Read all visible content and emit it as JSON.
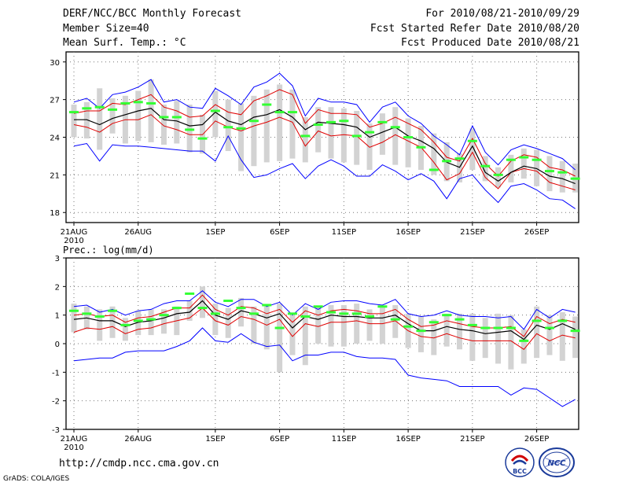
{
  "header": {
    "title": "DERF/NCC/BCC Monthly Forecast",
    "member_size": "Member Size=40",
    "variable": "Mean Surf. Temp.: °C",
    "period": "For 2010/08/21-2010/09/29",
    "started": "Fcst Started Refer Date 2010/08/20",
    "produced": "Fcst Produced Date 2010/08/21"
  },
  "footer": {
    "url": "http://cmdp.ncc.cma.gov.cn",
    "grads": "GrADS: COLA/IGES",
    "logo1_text": "BCC",
    "logo2_text": "NCC"
  },
  "colors": {
    "envelope": "#0000ff",
    "spread": "#e00000",
    "mean": "#000000",
    "box": "#d3d3d3",
    "marker": "#33ff33"
  },
  "chart_data": [
    {
      "type": "line",
      "title": "Mean Surf. Temp.: °C",
      "x_tick_labels": [
        "21AUG",
        "26AUG",
        "1SEP",
        "6SEP",
        "11SEP",
        "16SEP",
        "21SEP",
        "26SEP"
      ],
      "x_tick_positions": [
        1,
        6,
        12,
        17,
        22,
        27,
        32,
        37
      ],
      "year_label": "2010",
      "y_ticks": [
        18,
        21,
        24,
        27,
        30
      ],
      "y_tick_labels": [
        "18",
        "21",
        "24",
        "27",
        "30"
      ],
      "ylim": [
        17.2,
        30.8
      ],
      "x": [
        1,
        2,
        3,
        4,
        5,
        6,
        7,
        8,
        9,
        10,
        11,
        12,
        13,
        14,
        15,
        16,
        17,
        18,
        19,
        20,
        21,
        22,
        23,
        24,
        25,
        26,
        27,
        28,
        29,
        30,
        31,
        32,
        33,
        34,
        35,
        36,
        37,
        38,
        39,
        40
      ],
      "series": [
        {
          "name": "max",
          "values": [
            26.8,
            27.1,
            26.3,
            27.4,
            27.6,
            28.0,
            28.6,
            26.8,
            27.0,
            26.4,
            26.3,
            27.9,
            27.3,
            26.6,
            28.0,
            28.4,
            29.1,
            28.1,
            25.7,
            27.1,
            26.8,
            26.8,
            26.6,
            25.2,
            26.4,
            26.8,
            25.7,
            25.1,
            24.1,
            23.4,
            22.6,
            24.9,
            22.8,
            21.8,
            23.0,
            23.4,
            23.1,
            22.7,
            22.3,
            21.4
          ]
        },
        {
          "name": "upper",
          "values": [
            25.9,
            26.1,
            26.1,
            26.7,
            26.6,
            27.0,
            27.4,
            26.4,
            26.1,
            25.6,
            25.7,
            26.6,
            26.0,
            25.8,
            26.9,
            27.3,
            27.8,
            27.4,
            25.1,
            26.2,
            25.9,
            25.9,
            25.8,
            24.8,
            25.1,
            25.6,
            25.1,
            24.6,
            23.6,
            22.4,
            22.1,
            23.9,
            21.9,
            20.9,
            22.1,
            22.6,
            22.4,
            21.6,
            21.4,
            20.9
          ]
        },
        {
          "name": "mean",
          "values": [
            25.4,
            25.4,
            25.0,
            25.5,
            25.8,
            26.1,
            26.3,
            25.4,
            25.3,
            24.9,
            25.0,
            26.0,
            25.3,
            25.0,
            25.6,
            25.8,
            26.2,
            25.6,
            24.6,
            25.2,
            25.1,
            25.0,
            24.8,
            24.0,
            24.4,
            24.8,
            24.1,
            23.7,
            23.1,
            22.0,
            21.6,
            23.3,
            21.2,
            20.5,
            21.2,
            21.7,
            21.5,
            20.9,
            20.7,
            20.3
          ]
        },
        {
          "name": "lower",
          "values": [
            25.0,
            24.8,
            24.4,
            25.1,
            25.4,
            25.4,
            25.8,
            24.9,
            24.6,
            24.2,
            24.2,
            25.3,
            24.8,
            24.5,
            24.9,
            25.2,
            25.6,
            25.2,
            23.3,
            24.5,
            24.1,
            24.2,
            24.1,
            23.2,
            23.6,
            24.2,
            23.7,
            23.2,
            22.0,
            20.6,
            21.1,
            22.8,
            20.8,
            19.9,
            21.2,
            21.5,
            21.3,
            20.4,
            20.1,
            19.8
          ]
        },
        {
          "name": "min",
          "values": [
            23.3,
            23.5,
            22.1,
            23.4,
            23.3,
            23.3,
            23.2,
            23.1,
            23.0,
            22.9,
            22.9,
            22.1,
            24.1,
            22.2,
            20.8,
            21.0,
            21.5,
            21.9,
            20.7,
            21.7,
            22.2,
            21.7,
            20.9,
            20.9,
            21.8,
            21.3,
            20.6,
            21.1,
            20.5,
            19.1,
            20.7,
            21.0,
            19.8,
            18.8,
            20.1,
            20.3,
            19.8,
            19.1,
            19.0,
            18.3
          ]
        },
        {
          "name": "box_top",
          "values": [
            26.6,
            26.8,
            27.9,
            27.1,
            27.3,
            27.7,
            28.6,
            26.6,
            26.9,
            26.6,
            25.8,
            27.7,
            27.0,
            26.7,
            27.3,
            27.8,
            28.2,
            27.8,
            25.6,
            26.4,
            26.4,
            26.3,
            26.1,
            25.1,
            25.9,
            26.4,
            25.5,
            24.9,
            24.3,
            23.6,
            22.7,
            24.7,
            22.5,
            21.6,
            22.6,
            23.1,
            23.0,
            22.5,
            22.1,
            21.9
          ]
        },
        {
          "name": "box_bottom",
          "values": [
            24.0,
            23.9,
            23.0,
            24.3,
            23.5,
            23.7,
            23.6,
            23.4,
            23.5,
            22.8,
            22.7,
            24.0,
            22.9,
            21.3,
            21.7,
            22.0,
            22.1,
            22.3,
            22.0,
            22.8,
            22.3,
            22.0,
            21.8,
            21.4,
            22.6,
            21.8,
            21.6,
            21.4,
            21.0,
            20.5,
            20.4,
            21.4,
            20.5,
            20.0,
            20.4,
            20.7,
            20.1,
            19.7,
            19.6,
            19.6
          ]
        },
        {
          "name": "green",
          "values": [
            26.0,
            26.3,
            26.4,
            26.2,
            26.7,
            26.8,
            26.7,
            25.6,
            25.6,
            24.6,
            23.9,
            26.1,
            24.8,
            24.7,
            25.3,
            26.6,
            26.0,
            26.0,
            24.1,
            25.0,
            25.2,
            25.3,
            24.1,
            24.4,
            25.2,
            24.8,
            24.0,
            23.2,
            21.4,
            22.1,
            22.3,
            23.7,
            21.7,
            21.0,
            22.2,
            22.4,
            22.2,
            21.3,
            21.2,
            20.7
          ]
        }
      ]
    },
    {
      "type": "line",
      "title": "Prec.: log(mm/d)",
      "x_tick_labels": [
        "21AUG",
        "26AUG",
        "1SEP",
        "6SEP",
        "11SEP",
        "16SEP",
        "21SEP",
        "26SEP"
      ],
      "x_tick_positions": [
        1,
        6,
        12,
        17,
        22,
        27,
        32,
        37
      ],
      "year_label": "2010",
      "y_ticks": [
        -3,
        -2,
        -1,
        0,
        1,
        2,
        3
      ],
      "y_tick_labels": [
        "-3",
        "-2",
        "-1",
        "0",
        "1",
        "2",
        "3"
      ],
      "ylim": [
        -3,
        3
      ],
      "x": [
        1,
        2,
        3,
        4,
        5,
        6,
        7,
        8,
        9,
        10,
        11,
        12,
        13,
        14,
        15,
        16,
        17,
        18,
        19,
        20,
        21,
        22,
        23,
        24,
        25,
        26,
        27,
        28,
        29,
        30,
        31,
        32,
        33,
        34,
        35,
        36,
        37,
        38,
        39,
        40
      ],
      "series": [
        {
          "name": "max",
          "values": [
            1.3,
            1.35,
            1.1,
            1.2,
            1.0,
            1.15,
            1.2,
            1.4,
            1.5,
            1.5,
            1.85,
            1.45,
            1.3,
            1.55,
            1.55,
            1.3,
            1.45,
            1.0,
            1.4,
            1.2,
            1.45,
            1.5,
            1.5,
            1.4,
            1.35,
            1.55,
            1.05,
            0.95,
            1.0,
            1.15,
            1.0,
            0.95,
            0.95,
            0.9,
            0.95,
            0.5,
            1.2,
            0.9,
            1.2,
            1.1
          ]
        },
        {
          "name": "upper",
          "values": [
            1.0,
            1.05,
            0.95,
            1.0,
            0.75,
            0.9,
            0.95,
            1.1,
            1.25,
            1.25,
            1.7,
            1.2,
            1.0,
            1.3,
            1.25,
            1.05,
            1.2,
            0.75,
            1.15,
            1.0,
            1.15,
            1.2,
            1.15,
            1.05,
            1.05,
            1.2,
            0.85,
            0.6,
            0.65,
            0.8,
            0.7,
            0.6,
            0.55,
            0.55,
            0.6,
            0.25,
            0.95,
            0.7,
            0.85,
            0.75
          ]
        },
        {
          "name": "mean",
          "values": [
            0.85,
            0.9,
            0.8,
            0.8,
            0.6,
            0.75,
            0.8,
            0.9,
            1.05,
            1.1,
            1.5,
            1.0,
            0.85,
            1.15,
            1.05,
            0.9,
            1.05,
            0.55,
            0.95,
            0.85,
            1.0,
            0.95,
            0.95,
            0.9,
            0.9,
            1.0,
            0.7,
            0.45,
            0.45,
            0.6,
            0.5,
            0.45,
            0.35,
            0.4,
            0.45,
            0.15,
            0.65,
            0.5,
            0.7,
            0.5
          ]
        },
        {
          "name": "lower",
          "values": [
            0.4,
            0.55,
            0.5,
            0.6,
            0.35,
            0.5,
            0.55,
            0.7,
            0.8,
            0.9,
            1.25,
            0.8,
            0.65,
            0.95,
            0.85,
            0.65,
            0.85,
            0.25,
            0.7,
            0.6,
            0.75,
            0.75,
            0.8,
            0.7,
            0.7,
            0.8,
            0.45,
            0.25,
            0.2,
            0.35,
            0.2,
            0.1,
            0.1,
            0.1,
            0.1,
            -0.2,
            0.35,
            0.1,
            0.3,
            0.2
          ]
        },
        {
          "name": "min",
          "values": [
            -0.6,
            -0.55,
            -0.5,
            -0.5,
            -0.3,
            -0.25,
            -0.25,
            -0.25,
            -0.1,
            0.1,
            0.55,
            0.1,
            0.05,
            0.35,
            0.05,
            -0.1,
            -0.05,
            -0.6,
            -0.4,
            -0.4,
            -0.3,
            -0.3,
            -0.45,
            -0.5,
            -0.5,
            -0.55,
            -1.1,
            -1.2,
            -1.25,
            -1.3,
            -1.5,
            -1.5,
            -1.5,
            -1.5,
            -1.8,
            -1.55,
            -1.6,
            -1.9,
            -2.2,
            -1.95
          ]
        },
        {
          "name": "box_top",
          "values": [
            1.4,
            1.3,
            1.2,
            1.3,
            0.9,
            1.15,
            1.2,
            1.2,
            1.3,
            1.5,
            2.0,
            1.4,
            1.25,
            1.6,
            1.3,
            1.35,
            1.4,
            1.0,
            1.3,
            1.3,
            1.35,
            1.35,
            1.4,
            1.2,
            1.3,
            1.35,
            1.05,
            0.95,
            0.85,
            1.05,
            1.05,
            1.05,
            0.9,
            1.05,
            1.0,
            0.5,
            1.3,
            1.0,
            1.1,
            0.95
          ]
        },
        {
          "name": "box_bottom",
          "values": [
            0.4,
            0.5,
            0.1,
            0.2,
            0.1,
            0.3,
            0.3,
            0.35,
            0.3,
            0.8,
            0.9,
            0.3,
            0.2,
            0.6,
            0.0,
            -0.2,
            -1.0,
            -0.4,
            -0.75,
            0.0,
            -0.1,
            -0.1,
            0.0,
            0.1,
            0.0,
            0.2,
            -0.15,
            -0.3,
            -0.4,
            -0.1,
            -0.2,
            -0.6,
            -0.5,
            -0.7,
            -0.9,
            -0.7,
            -0.5,
            -0.4,
            -0.6,
            -0.5
          ]
        },
        {
          "name": "green",
          "values": [
            1.15,
            1.05,
            0.95,
            1.15,
            0.65,
            0.8,
            0.85,
            1.0,
            1.25,
            1.75,
            1.25,
            1.05,
            1.5,
            1.25,
            1.05,
            1.35,
            0.55,
            1.05,
            0.95,
            1.3,
            1.1,
            1.05,
            1.05,
            0.95,
            1.3,
            0.85,
            0.6,
            0.45,
            0.75,
            1.0,
            0.85,
            0.65,
            0.55,
            0.55,
            0.55,
            0.1,
            0.8,
            0.55,
            0.8,
            0.45
          ]
        }
      ]
    }
  ]
}
